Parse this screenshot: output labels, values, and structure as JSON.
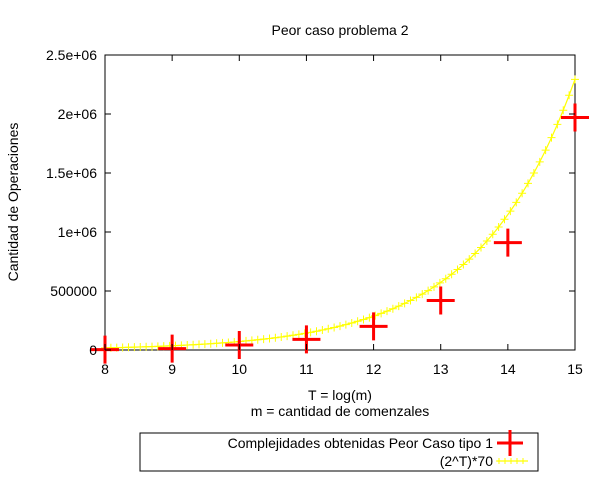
{
  "chart_data": {
    "type": "scatter",
    "title": "Peor caso problema 2",
    "xlabel": "T = log(m)",
    "xlabel2": "m = cantidad de comenzales",
    "ylabel": "Cantidad de Operaciones",
    "xlim": [
      8,
      15
    ],
    "ylim": [
      0,
      2500000
    ],
    "x_ticks": [
      8,
      9,
      10,
      11,
      12,
      13,
      14,
      15
    ],
    "y_ticks": [
      {
        "value": 0,
        "label": "0"
      },
      {
        "value": 500000,
        "label": "500000"
      },
      {
        "value": 1000000,
        "label": "1e+06"
      },
      {
        "value": 1500000,
        "label": "1.5e+06"
      },
      {
        "value": 2000000,
        "label": "2e+06"
      },
      {
        "value": 2500000,
        "label": "2.5e+06"
      }
    ],
    "grid": false,
    "legend_position": "bottom",
    "series": [
      {
        "name": "Complejidades obtenidas Peor Caso tipo 1",
        "color": "#ff0000",
        "marker": "plus",
        "x": [
          8,
          9,
          10,
          11,
          12,
          13,
          14,
          15
        ],
        "y": [
          3000,
          12000,
          42000,
          90000,
          200000,
          420000,
          910000,
          1970000
        ]
      },
      {
        "name": "(2^T)*70",
        "color": "#ffff00",
        "marker": "small-plus-line",
        "function": "70*2^x",
        "x_range": [
          8,
          15
        ]
      }
    ]
  }
}
